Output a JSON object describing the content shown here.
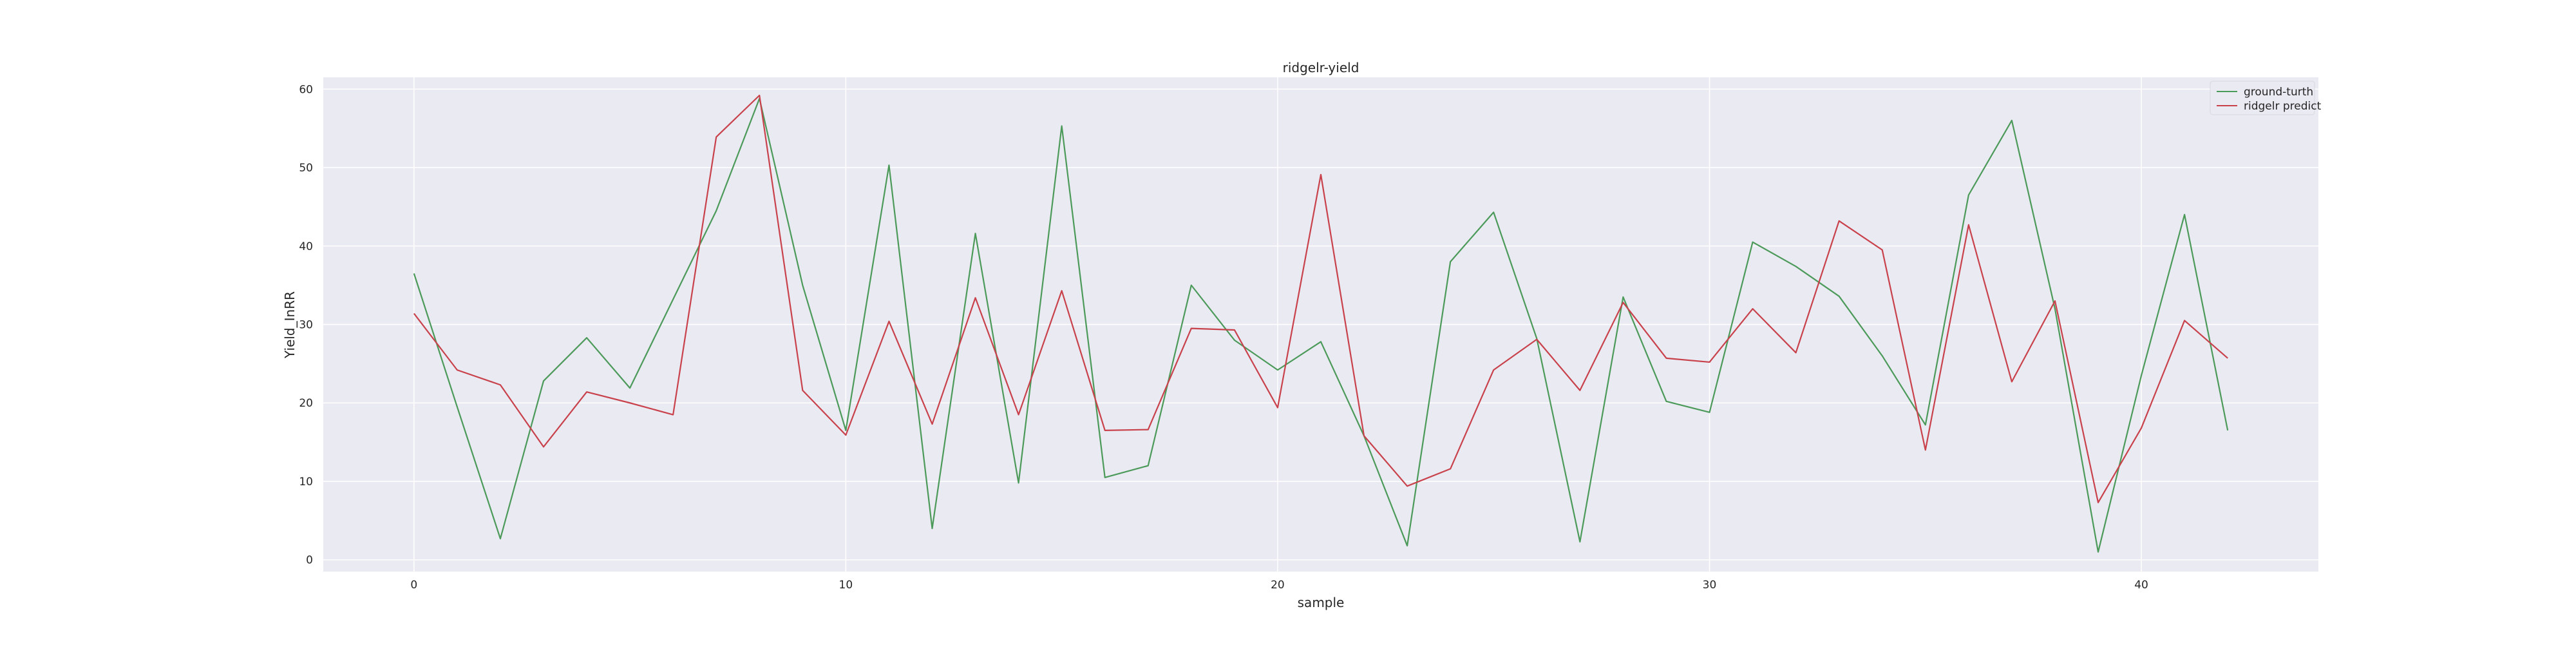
{
  "chart_data": {
    "type": "line",
    "title": "ridgelr-yield",
    "xlabel": "sample",
    "ylabel": "Yield_InRR",
    "xlim": [
      -2.1,
      44.1
    ],
    "ylim": [
      -1.5,
      61.5
    ],
    "xticks": [
      0,
      10,
      20,
      30,
      40
    ],
    "yticks": [
      0,
      10,
      20,
      30,
      40,
      50,
      60
    ],
    "grid": true,
    "legend_position": "top-right",
    "x": [
      0,
      1,
      2,
      3,
      4,
      5,
      6,
      7,
      8,
      9,
      10,
      11,
      12,
      13,
      14,
      15,
      16,
      17,
      18,
      19,
      20,
      21,
      22,
      23,
      24,
      25,
      26,
      27,
      28,
      29,
      30,
      31,
      32,
      33,
      34,
      35,
      36,
      37,
      38,
      39,
      40,
      41,
      42
    ],
    "series": [
      {
        "name": "ground-turth",
        "color": "#4c9a5a",
        "values": [
          36.5,
          19.5,
          2.7,
          22.8,
          28.3,
          21.9,
          33.2,
          44.5,
          58.8,
          35.0,
          16.5,
          50.3,
          4.0,
          41.6,
          9.8,
          55.3,
          10.5,
          12.0,
          35.0,
          28.0,
          24.2,
          27.8,
          15.8,
          1.8,
          38.0,
          44.3,
          28.2,
          2.3,
          33.5,
          20.2,
          18.8,
          40.5,
          37.4,
          33.6,
          26.0,
          17.2,
          46.5,
          56.0,
          32.0,
          1.0,
          23.5,
          44.0,
          16.5
        ]
      },
      {
        "name": "ridgelr predict",
        "color": "#c8414b",
        "values": [
          31.4,
          24.2,
          22.3,
          14.4,
          21.4,
          20.0,
          18.5,
          53.9,
          59.2,
          21.6,
          15.9,
          30.4,
          17.3,
          33.4,
          18.5,
          34.3,
          16.5,
          16.6,
          29.5,
          29.3,
          19.4,
          49.1,
          15.8,
          9.4,
          11.6,
          24.2,
          28.1,
          21.6,
          32.8,
          25.7,
          25.2,
          32.0,
          26.4,
          43.2,
          39.5,
          14.0,
          42.7,
          22.7,
          33.0,
          7.3,
          16.8,
          30.5,
          25.7
        ]
      }
    ]
  }
}
